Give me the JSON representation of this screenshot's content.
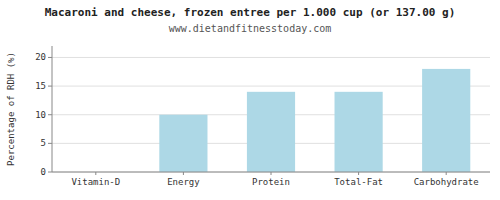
{
  "chart_data": {
    "type": "bar",
    "title": "Macaroni and cheese, frozen entree per 1.000 cup (or 137.00 g)",
    "subtitle": "www.dietandfitnesstoday.com",
    "categories": [
      "Vitamin-D",
      "Energy",
      "Protein",
      "Total-Fat",
      "Carbohydrate"
    ],
    "values": [
      0,
      10,
      14,
      14,
      18
    ],
    "color": "#add8e6",
    "ylabel": "Percentage of RDH (%)",
    "ylim": [
      0,
      22
    ],
    "yticks": [
      0,
      5,
      10,
      15,
      20
    ],
    "grid": true
  }
}
